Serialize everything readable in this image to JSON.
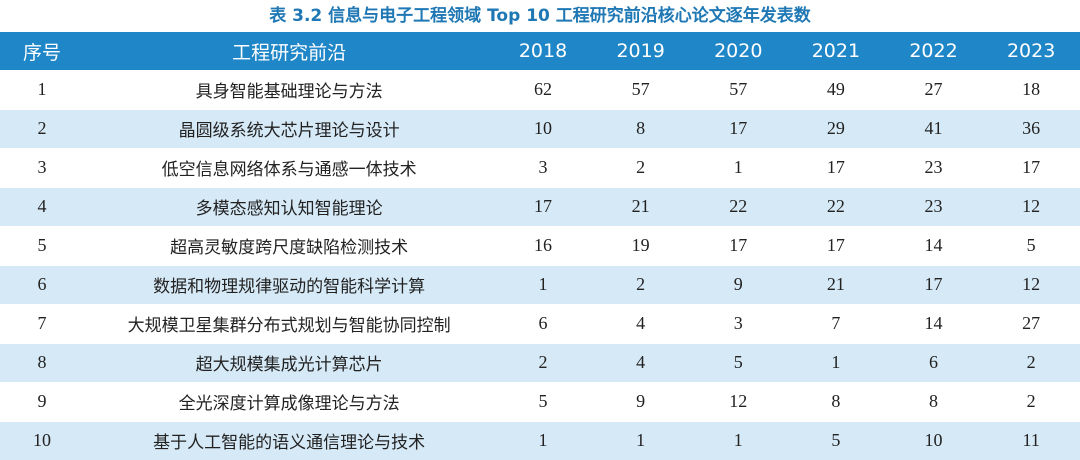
{
  "caption": "表 3.2   信息与电子工程领域 Top 10 工程研究前沿核心论文逐年发表数",
  "headers": {
    "index": "序号",
    "topic": "工程研究前沿",
    "years": [
      "2018",
      "2019",
      "2020",
      "2021",
      "2022",
      "2023"
    ]
  },
  "rows": [
    {
      "index": "1",
      "topic": "具身智能基础理论与方法",
      "values": [
        "62",
        "57",
        "57",
        "49",
        "27",
        "18"
      ]
    },
    {
      "index": "2",
      "topic": "晶圆级系统大芯片理论与设计",
      "values": [
        "10",
        "8",
        "17",
        "29",
        "41",
        "36"
      ]
    },
    {
      "index": "3",
      "topic": "低空信息网络体系与通感一体技术",
      "values": [
        "3",
        "2",
        "1",
        "17",
        "23",
        "17"
      ]
    },
    {
      "index": "4",
      "topic": "多模态感知认知智能理论",
      "values": [
        "17",
        "21",
        "22",
        "22",
        "23",
        "12"
      ]
    },
    {
      "index": "5",
      "topic": "超高灵敏度跨尺度缺陷检测技术",
      "values": [
        "16",
        "19",
        "17",
        "17",
        "14",
        "5"
      ]
    },
    {
      "index": "6",
      "topic": "数据和物理规律驱动的智能科学计算",
      "values": [
        "1",
        "2",
        "9",
        "21",
        "17",
        "12"
      ]
    },
    {
      "index": "7",
      "topic": "大规模卫星集群分布式规划与智能协同控制",
      "values": [
        "6",
        "4",
        "3",
        "7",
        "14",
        "27"
      ]
    },
    {
      "index": "8",
      "topic": "超大规模集成光计算芯片",
      "values": [
        "2",
        "4",
        "5",
        "1",
        "6",
        "2"
      ]
    },
    {
      "index": "9",
      "topic": "全光深度计算成像理论与方法",
      "values": [
        "5",
        "9",
        "12",
        "8",
        "8",
        "2"
      ]
    },
    {
      "index": "10",
      "topic": "基于人工智能的语义通信理论与技术",
      "values": [
        "1",
        "1",
        "1",
        "5",
        "10",
        "11"
      ]
    }
  ],
  "colors": {
    "header_bg": "#1f86c8",
    "caption": "#1f78b4",
    "stripe": "#d6e9f6"
  }
}
